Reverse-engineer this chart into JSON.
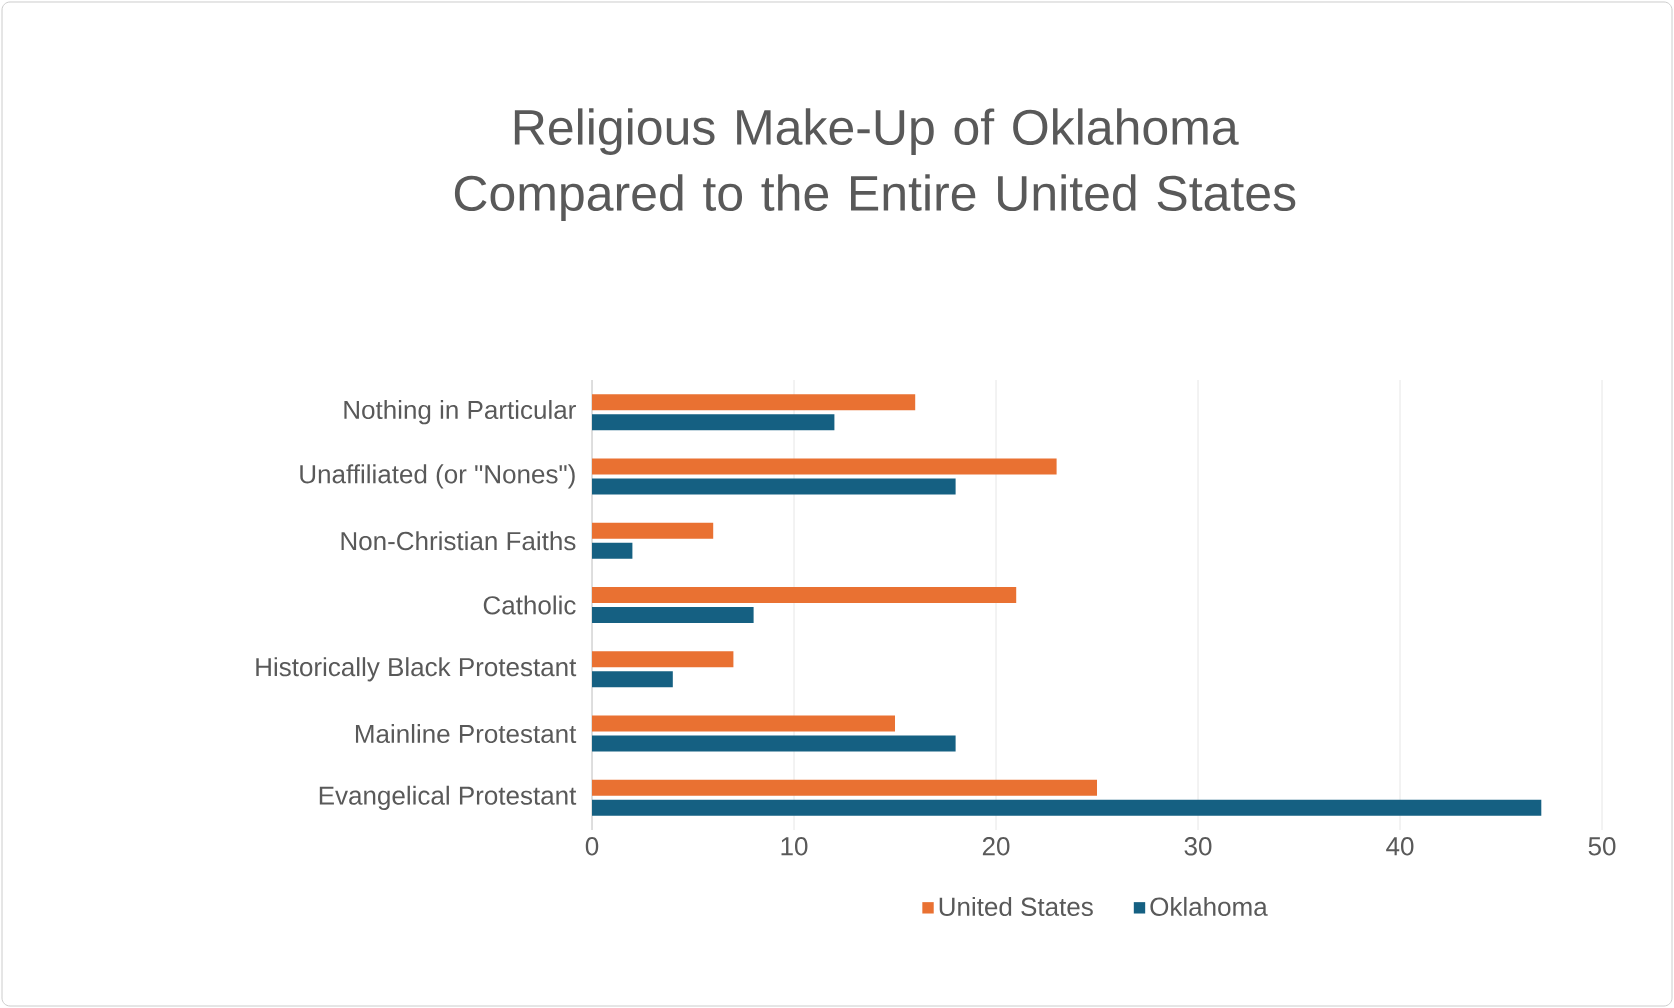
{
  "chart_data": {
    "type": "bar",
    "orientation": "horizontal",
    "title": "Religious Make-Up of Oklahoma Compared to the Entire United States",
    "categories": [
      "Nothing in Particular",
      "Unaffiliated (or \"Nones\")",
      "Non-Christian Faiths",
      "Catholic",
      "Historically Black Protestant",
      "Mainline Protestant",
      "Evangelical Protestant"
    ],
    "series": [
      {
        "name": "United States",
        "color": "#e97132",
        "values": [
          16,
          23,
          6,
          21,
          7,
          15,
          25
        ]
      },
      {
        "name": "Oklahoma",
        "color": "#156082",
        "values": [
          12,
          18,
          2,
          8,
          4,
          18,
          47
        ]
      }
    ],
    "xlim": [
      0,
      50
    ],
    "xticks": [
      0,
      10,
      20,
      30,
      40,
      50
    ],
    "grid": "x",
    "legend": "bottom"
  }
}
